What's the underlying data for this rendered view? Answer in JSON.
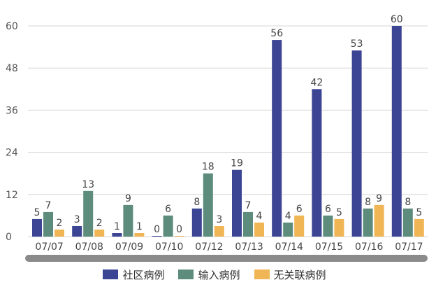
{
  "chart_data": {
    "type": "bar",
    "title": "",
    "xlabel": "",
    "ylabel": "",
    "categories": [
      "07/07",
      "07/08",
      "07/09",
      "07/10",
      "07/12",
      "07/13",
      "07/14",
      "07/15",
      "07/16",
      "07/17"
    ],
    "series": [
      {
        "name": "社区病例",
        "color": "#3c4494",
        "values": [
          5,
          3,
          1,
          0,
          8,
          19,
          56,
          42,
          53,
          60
        ]
      },
      {
        "name": "输入病例",
        "color": "#5d8c7c",
        "values": [
          7,
          13,
          9,
          6,
          18,
          7,
          4,
          6,
          8,
          8
        ]
      },
      {
        "name": "无关联病例",
        "color": "#f0b555",
        "values": [
          2,
          2,
          1,
          0,
          3,
          4,
          6,
          5,
          9,
          5
        ]
      }
    ],
    "ylim": [
      0,
      60
    ],
    "yticks": [
      0,
      12,
      24,
      36,
      48,
      60
    ],
    "grid": true,
    "legend": "bottom"
  }
}
